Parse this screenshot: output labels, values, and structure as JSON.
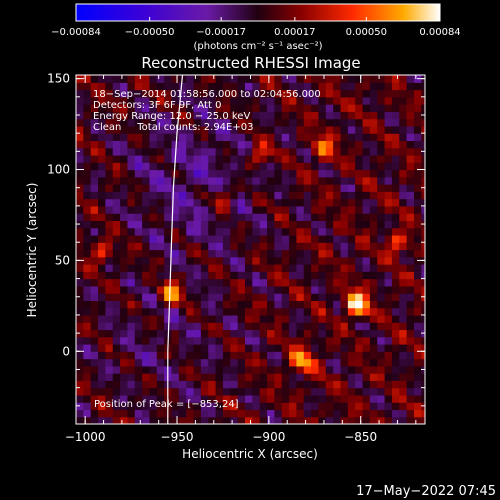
{
  "chart_data": {
    "type": "heatmap",
    "title": "Reconstructed RHESSI Image",
    "xlabel": "Heliocentric X (arcsec)",
    "ylabel": "Heliocentric Y (arcsec)",
    "xlim": [
      -1005,
      -815
    ],
    "ylim": [
      -40,
      152
    ],
    "x_ticks": [
      -1000,
      -950,
      -900,
      -850
    ],
    "y_ticks": [
      0,
      50,
      100,
      150
    ],
    "x_tick_labels": [
      "−1000",
      "−950",
      "−900",
      "−850"
    ],
    "y_tick_labels": [
      "0",
      "50",
      "100",
      "150"
    ],
    "colorbar": {
      "range": [
        -0.00084,
        0.00084
      ],
      "tick_values": [
        -0.00084,
        -0.0005,
        -0.00017,
        0.00017,
        0.0005,
        0.00084
      ],
      "tick_labels": [
        "−0.00084",
        "−0.00050",
        "−0.00017",
        "0.00017",
        "0.00050",
        "0.00084"
      ],
      "unit_label": "(photons cm⁻² s⁻¹ asec⁻²)"
    },
    "annotations": [
      "18−Sep−2014 01:58:56.000 to 02:04:56.000",
      "Detectors: 3F 6F 9F, Att 0",
      "Energy Range: 12.0 − 25.0 keV",
      "Clean     Total counts: 2.94E+03"
    ],
    "peak_label": "Position of Peak = [−853,24]",
    "peak": {
      "x": -853,
      "y": 24
    },
    "bright_spots": [
      {
        "x": -953,
        "y": 32,
        "value": 0.00062
      },
      {
        "x": -852,
        "y": 26,
        "value": 0.00084
      },
      {
        "x": -882,
        "y": -5,
        "value": 0.0006
      },
      {
        "x": -870,
        "y": 112,
        "value": 0.00045
      },
      {
        "x": -905,
        "y": 108,
        "value": 0.00042
      },
      {
        "x": -925,
        "y": 85,
        "value": 0.0004
      },
      {
        "x": -990,
        "y": 55,
        "value": 0.00035
      },
      {
        "x": -830,
        "y": 60,
        "value": 0.0004
      }
    ],
    "limb_curve": [
      {
        "x": -947,
        "y": 152
      },
      {
        "x": -950,
        "y": 120
      },
      {
        "x": -952,
        "y": 90
      },
      {
        "x": -953,
        "y": 60
      },
      {
        "x": -954,
        "y": 30
      },
      {
        "x": -955,
        "y": 0
      },
      {
        "x": -955,
        "y": -40
      }
    ]
  },
  "footer": {
    "timestamp": "17−May−2022 07:45"
  }
}
